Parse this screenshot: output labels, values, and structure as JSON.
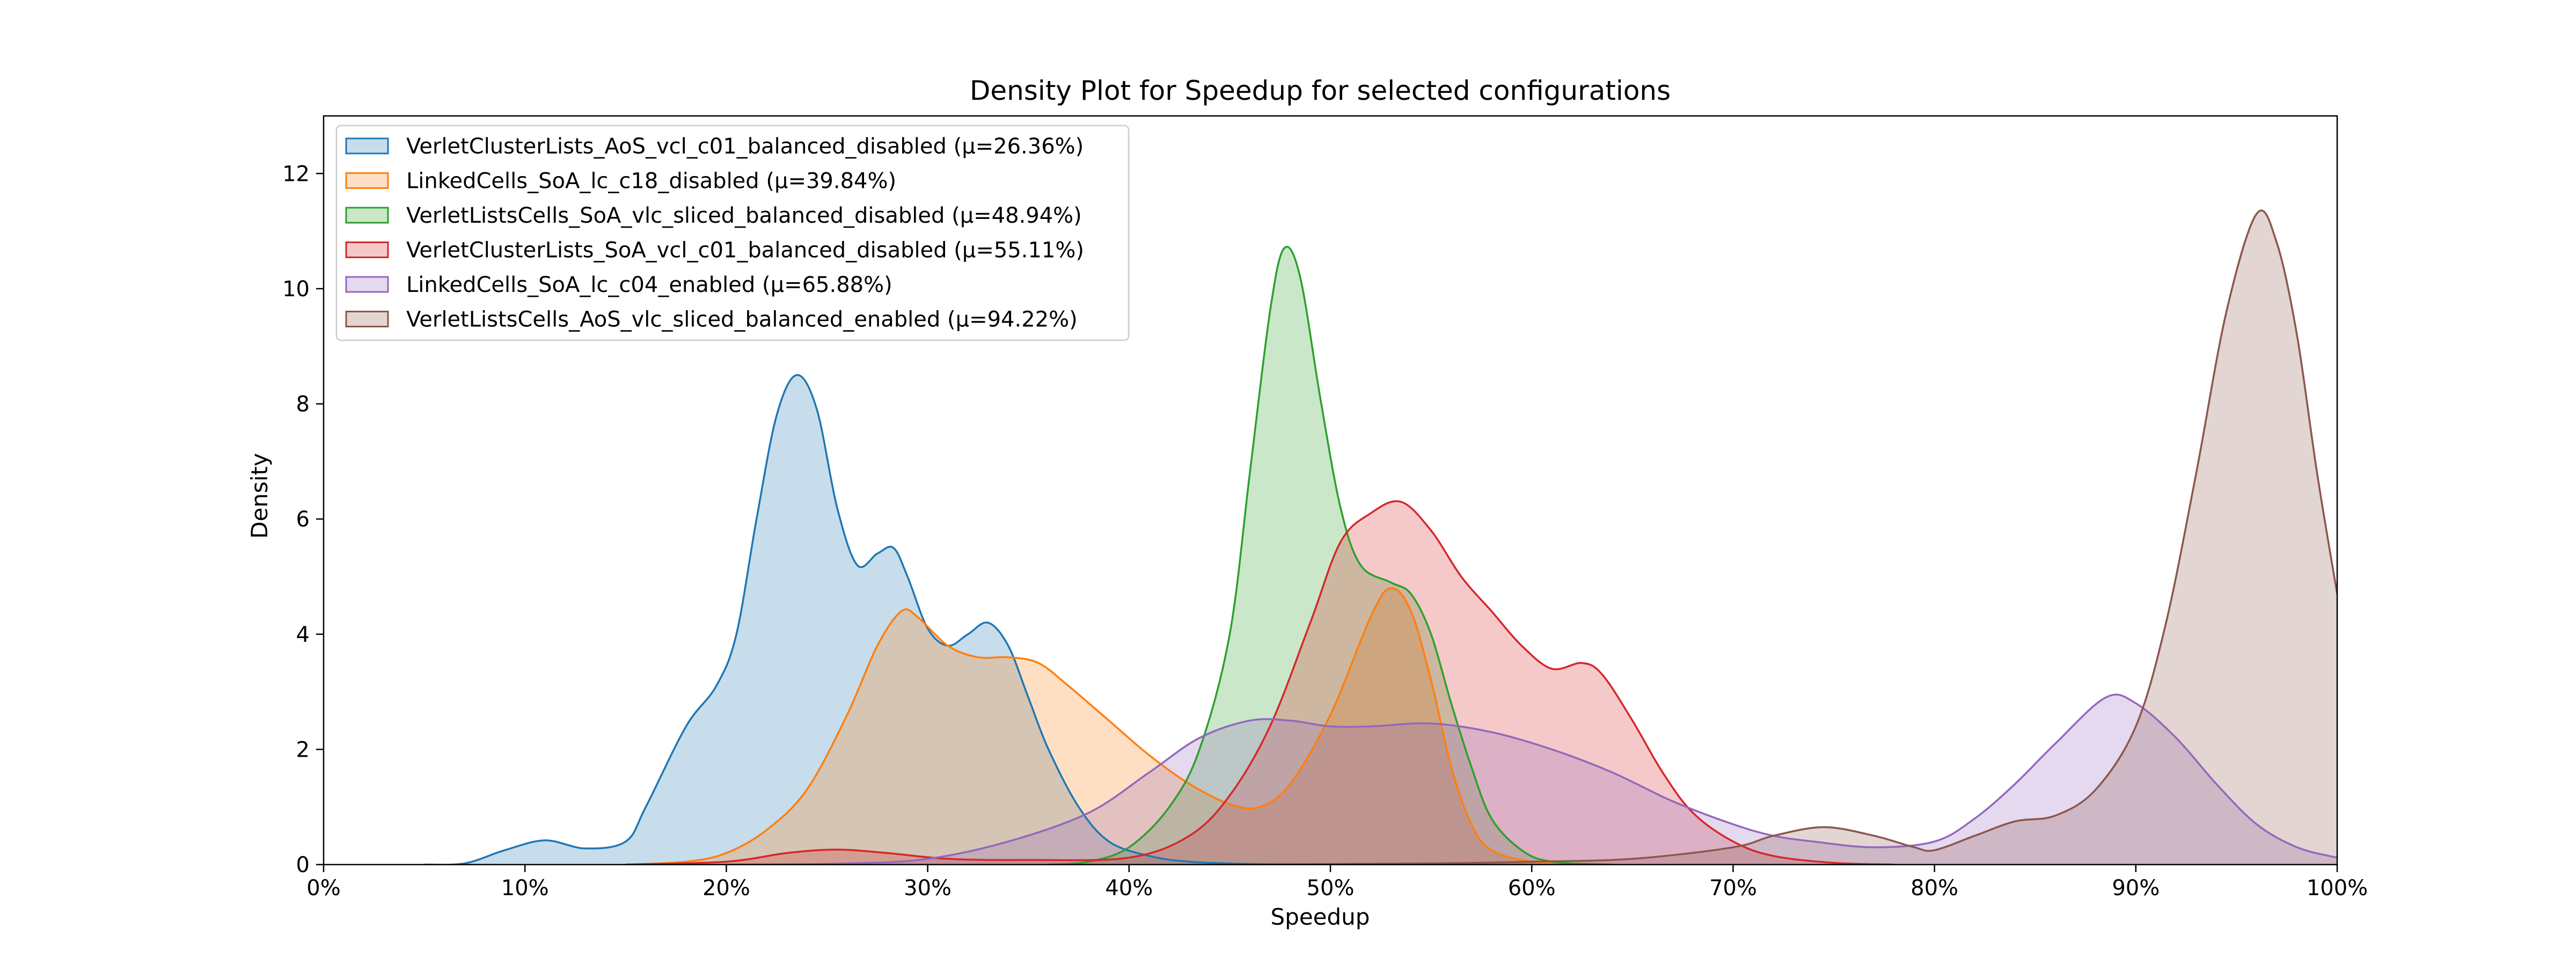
{
  "chart_data": {
    "type": "area",
    "title": "Density Plot for Speedup for selected configurations",
    "xlabel": "Speedup",
    "ylabel": "Density",
    "xlim": [
      0,
      100
    ],
    "ylim": [
      0,
      13
    ],
    "x_ticks": [
      {
        "value": 0,
        "label": "0%"
      },
      {
        "value": 10,
        "label": "10%"
      },
      {
        "value": 20,
        "label": "20%"
      },
      {
        "value": 30,
        "label": "30%"
      },
      {
        "value": 40,
        "label": "40%"
      },
      {
        "value": 50,
        "label": "50%"
      },
      {
        "value": 60,
        "label": "60%"
      },
      {
        "value": 70,
        "label": "70%"
      },
      {
        "value": 80,
        "label": "80%"
      },
      {
        "value": 90,
        "label": "90%"
      },
      {
        "value": 100,
        "label": "100%"
      }
    ],
    "y_ticks": [
      {
        "value": 0,
        "label": "0"
      },
      {
        "value": 2,
        "label": "2"
      },
      {
        "value": 4,
        "label": "4"
      },
      {
        "value": 6,
        "label": "6"
      },
      {
        "value": 8,
        "label": "8"
      },
      {
        "value": 10,
        "label": "10"
      },
      {
        "value": 12,
        "label": "12"
      }
    ],
    "grid": false,
    "legend_position": "top-left",
    "series": [
      {
        "name": "VerletClusterLists_AoS_vcl_c01_balanced_disabled (μ=26.36%)",
        "color": "#1f77b4",
        "points": [
          [
            5,
            0
          ],
          [
            7,
            0.02
          ],
          [
            9,
            0.25
          ],
          [
            11,
            0.42
          ],
          [
            13,
            0.28
          ],
          [
            15,
            0.4
          ],
          [
            16,
            1.0
          ],
          [
            18,
            2.4
          ],
          [
            19.5,
            3.1
          ],
          [
            20.5,
            4.0
          ],
          [
            21.5,
            6.0
          ],
          [
            22.5,
            7.8
          ],
          [
            23.5,
            8.5
          ],
          [
            24.5,
            7.9
          ],
          [
            25.5,
            6.2
          ],
          [
            26.5,
            5.2
          ],
          [
            27.5,
            5.4
          ],
          [
            28.3,
            5.5
          ],
          [
            29,
            5.0
          ],
          [
            30,
            4.1
          ],
          [
            31,
            3.8
          ],
          [
            32,
            4.0
          ],
          [
            33,
            4.2
          ],
          [
            34,
            3.8
          ],
          [
            35,
            2.9
          ],
          [
            36,
            2.0
          ],
          [
            37.5,
            1.0
          ],
          [
            39,
            0.4
          ],
          [
            41,
            0.15
          ],
          [
            43,
            0.05
          ],
          [
            46,
            0.01
          ],
          [
            50,
            0
          ]
        ]
      },
      {
        "name": "LinkedCells_SoA_lc_c18_disabled (μ=39.84%)",
        "color": "#ff7f0e",
        "points": [
          [
            15,
            0
          ],
          [
            18,
            0.05
          ],
          [
            20,
            0.2
          ],
          [
            22,
            0.6
          ],
          [
            24,
            1.3
          ],
          [
            26,
            2.6
          ],
          [
            27.5,
            3.8
          ],
          [
            28.7,
            4.4
          ],
          [
            29.5,
            4.3
          ],
          [
            31,
            3.8
          ],
          [
            32.5,
            3.6
          ],
          [
            34,
            3.6
          ],
          [
            35.5,
            3.5
          ],
          [
            37,
            3.1
          ],
          [
            39,
            2.5
          ],
          [
            41,
            1.9
          ],
          [
            43,
            1.4
          ],
          [
            45,
            1.05
          ],
          [
            46.5,
            1.0
          ],
          [
            48,
            1.4
          ],
          [
            50,
            2.6
          ],
          [
            52,
            4.3
          ],
          [
            53,
            4.8
          ],
          [
            54,
            4.4
          ],
          [
            55,
            3.2
          ],
          [
            56,
            1.7
          ],
          [
            57,
            0.7
          ],
          [
            58,
            0.25
          ],
          [
            60,
            0.05
          ],
          [
            63,
            0
          ]
        ]
      },
      {
        "name": "VerletListsCells_SoA_vlc_sliced_balanced_disabled (μ=48.94%)",
        "color": "#2ca02c",
        "points": [
          [
            36,
            0
          ],
          [
            38,
            0.05
          ],
          [
            40,
            0.3
          ],
          [
            42,
            1.0
          ],
          [
            43.5,
            2.0
          ],
          [
            45,
            4.0
          ],
          [
            46,
            6.8
          ],
          [
            47,
            9.6
          ],
          [
            47.7,
            10.7
          ],
          [
            48.5,
            10.2
          ],
          [
            49.5,
            8.1
          ],
          [
            50.5,
            6.2
          ],
          [
            51.5,
            5.2
          ],
          [
            53,
            4.9
          ],
          [
            54,
            4.7
          ],
          [
            55,
            4.0
          ],
          [
            56,
            2.8
          ],
          [
            57,
            1.7
          ],
          [
            58,
            0.8
          ],
          [
            59.5,
            0.25
          ],
          [
            61,
            0.05
          ],
          [
            64,
            0
          ]
        ]
      },
      {
        "name": "VerletClusterLists_SoA_vcl_c01_balanced_disabled (μ=55.11%)",
        "color": "#d62728",
        "points": [
          [
            15,
            0
          ],
          [
            20,
            0.05
          ],
          [
            23,
            0.2
          ],
          [
            25.5,
            0.26
          ],
          [
            28,
            0.2
          ],
          [
            31,
            0.1
          ],
          [
            35,
            0.08
          ],
          [
            40,
            0.12
          ],
          [
            43,
            0.5
          ],
          [
            45,
            1.2
          ],
          [
            47,
            2.4
          ],
          [
            49,
            4.2
          ],
          [
            50.5,
            5.6
          ],
          [
            52,
            6.1
          ],
          [
            53.5,
            6.3
          ],
          [
            55,
            5.8
          ],
          [
            56.5,
            5.0
          ],
          [
            58,
            4.4
          ],
          [
            59.5,
            3.8
          ],
          [
            61,
            3.4
          ],
          [
            62.5,
            3.5
          ],
          [
            63.5,
            3.3
          ],
          [
            65,
            2.5
          ],
          [
            66.5,
            1.6
          ],
          [
            68,
            0.9
          ],
          [
            70,
            0.4
          ],
          [
            72,
            0.15
          ],
          [
            75,
            0.03
          ],
          [
            78,
            0
          ]
        ]
      },
      {
        "name": "LinkedCells_SoA_lc_c04_enabled (μ=65.88%)",
        "color": "#9467bd",
        "points": [
          [
            20,
            0
          ],
          [
            26,
            0.02
          ],
          [
            30,
            0.1
          ],
          [
            34,
            0.4
          ],
          [
            38,
            0.9
          ],
          [
            41,
            1.6
          ],
          [
            43.5,
            2.2
          ],
          [
            46,
            2.5
          ],
          [
            48,
            2.5
          ],
          [
            50,
            2.4
          ],
          [
            52,
            2.4
          ],
          [
            55,
            2.45
          ],
          [
            58,
            2.3
          ],
          [
            61,
            2.0
          ],
          [
            64,
            1.6
          ],
          [
            67,
            1.1
          ],
          [
            70,
            0.7
          ],
          [
            72,
            0.5
          ],
          [
            74,
            0.4
          ],
          [
            77,
            0.3
          ],
          [
            80,
            0.4
          ],
          [
            82,
            0.8
          ],
          [
            84,
            1.4
          ],
          [
            86,
            2.1
          ],
          [
            88.5,
            2.9
          ],
          [
            90,
            2.8
          ],
          [
            92,
            2.2
          ],
          [
            94,
            1.4
          ],
          [
            96,
            0.7
          ],
          [
            98,
            0.3
          ],
          [
            100,
            0.12
          ]
        ]
      },
      {
        "name": "VerletListsCells_AoS_vlc_sliced_balanced_enabled (μ=94.22%)",
        "color": "#8c564b",
        "points": [
          [
            45,
            0
          ],
          [
            55,
            0.02
          ],
          [
            60,
            0.05
          ],
          [
            65,
            0.1
          ],
          [
            70,
            0.3
          ],
          [
            72,
            0.5
          ],
          [
            74.5,
            0.65
          ],
          [
            77,
            0.5
          ],
          [
            79,
            0.3
          ],
          [
            80,
            0.25
          ],
          [
            82,
            0.5
          ],
          [
            84,
            0.75
          ],
          [
            86,
            0.85
          ],
          [
            88,
            1.3
          ],
          [
            90,
            2.4
          ],
          [
            91.5,
            4.2
          ],
          [
            93,
            6.8
          ],
          [
            94.5,
            9.6
          ],
          [
            96,
            11.3
          ],
          [
            97,
            10.8
          ],
          [
            98,
            9.2
          ],
          [
            99,
            6.8
          ],
          [
            100,
            4.7
          ]
        ]
      }
    ]
  }
}
